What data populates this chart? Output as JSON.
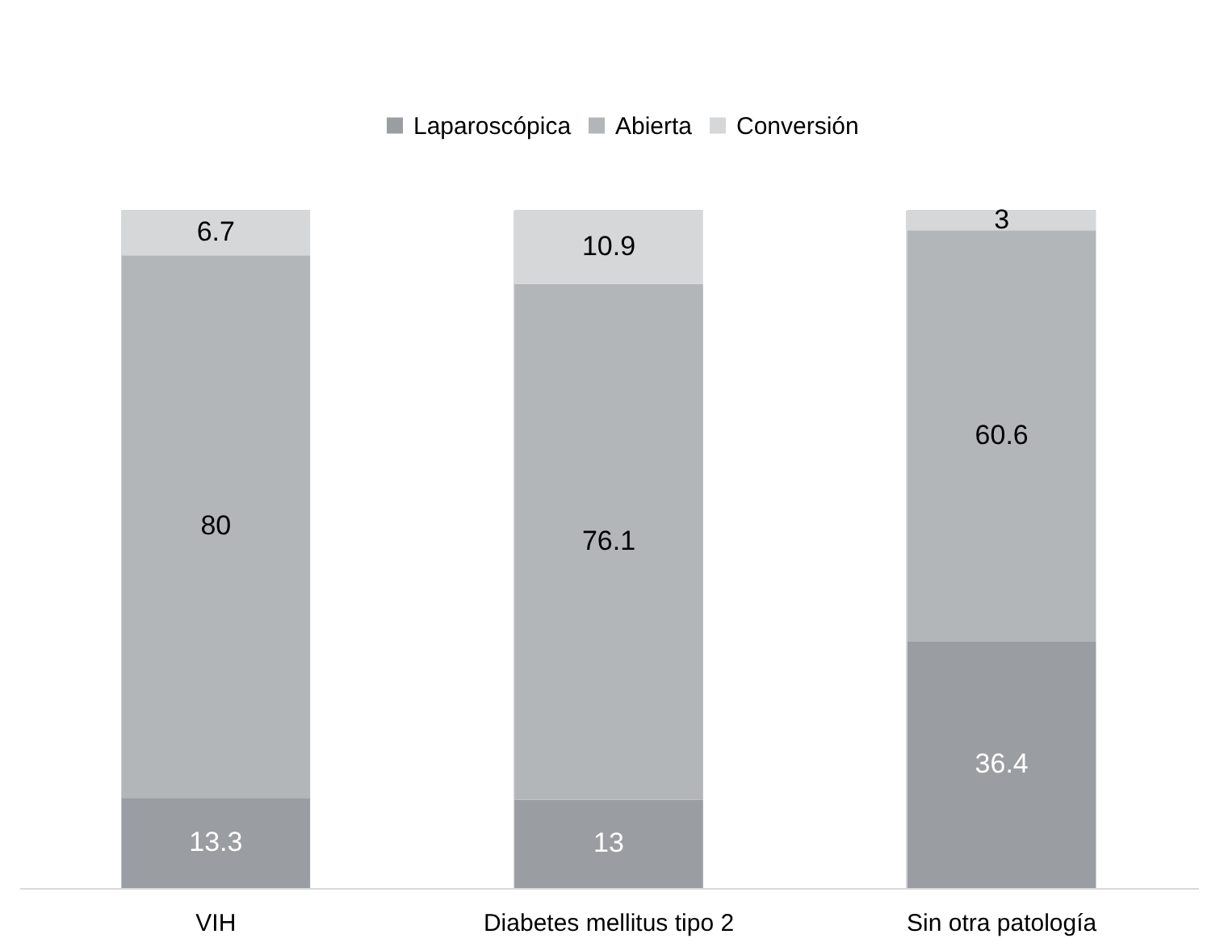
{
  "chart_data": {
    "type": "bar",
    "stacked": true,
    "categories": [
      "VIH",
      "Diabetes mellitus tipo 2",
      "Sin otra patología"
    ],
    "series": [
      {
        "name": "Laparoscópica",
        "color": "#9a9ea2",
        "values": [
          13.3,
          13,
          36.4
        ]
      },
      {
        "name": "Abierta",
        "color": "#b3b6b9",
        "values": [
          80,
          76.1,
          60.6
        ]
      },
      {
        "name": "Conversión",
        "color": "#d5d7d9",
        "values": [
          6.7,
          10.9,
          3
        ]
      }
    ],
    "data_labels": true,
    "legend": "top",
    "grid": "x"
  }
}
